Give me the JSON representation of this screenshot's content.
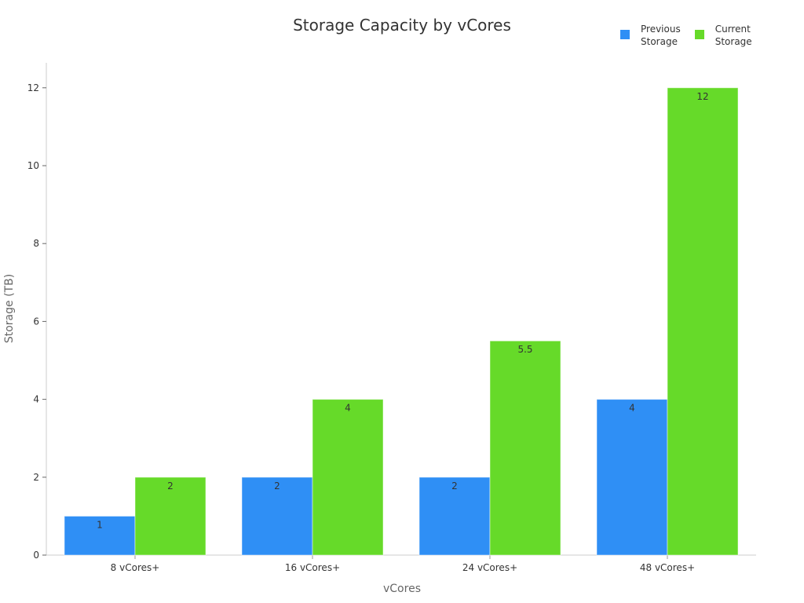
{
  "chart_data": {
    "type": "bar",
    "title": "Storage Capacity by vCores",
    "xlabel": "vCores",
    "ylabel": "Storage (TB)",
    "categories": [
      "8 vCores+",
      "16 vCores+",
      "24 vCores+",
      "48 vCores+"
    ],
    "series": [
      {
        "name": "Previous Storage",
        "color": "#2f8ff5",
        "values": [
          1,
          2,
          2,
          4
        ]
      },
      {
        "name": "Current Storage",
        "color": "#66da29",
        "values": [
          2,
          4,
          5.5,
          12
        ]
      }
    ],
    "ylim": [
      0,
      12.6
    ],
    "yticks": [
      0,
      2,
      4,
      6,
      8,
      10,
      12
    ],
    "grid": false,
    "legend_position": "top-right",
    "data_labels": true
  },
  "legend": {
    "previous": "Previous\nStorage",
    "current": "Current\nStorage"
  }
}
